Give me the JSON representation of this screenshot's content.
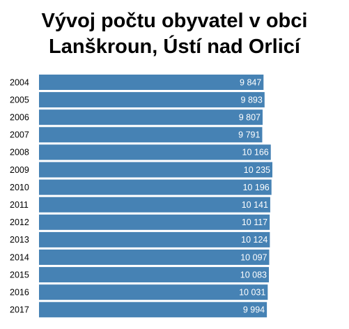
{
  "chart_data": {
    "type": "bar",
    "orientation": "horizontal",
    "title": "Vývoj počtu obyvatel v obci Lanškroun, Ústí nad Orlicí",
    "categories": [
      "2004",
      "2005",
      "2006",
      "2007",
      "2008",
      "2009",
      "2010",
      "2011",
      "2012",
      "2013",
      "2014",
      "2015",
      "2016",
      "2017"
    ],
    "values": [
      9847,
      9893,
      9807,
      9791,
      10166,
      10235,
      10196,
      10141,
      10117,
      10124,
      10097,
      10083,
      10031,
      9994
    ],
    "value_labels": [
      "9 847",
      "9 893",
      "9 807",
      "9 791",
      "10 166",
      "10 235",
      "10 196",
      "10 141",
      "10 117",
      "10 124",
      "10 097",
      "10 083",
      "10 031",
      "9 994"
    ],
    "color": "#4682b4"
  }
}
